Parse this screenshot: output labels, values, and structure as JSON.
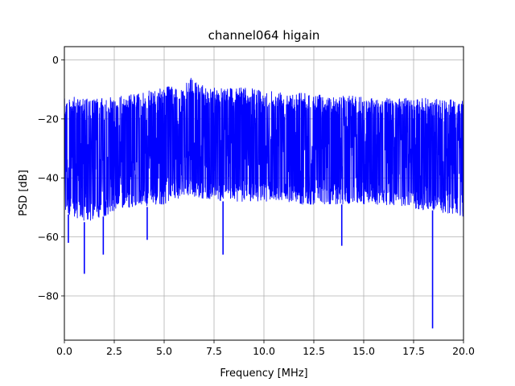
{
  "chart_data": {
    "type": "line",
    "title": "channel064 higain",
    "xlabel": "Frequency [MHz]",
    "ylabel": "PSD [dB]",
    "xlim": [
      0,
      20
    ],
    "ylim": [
      -95,
      4.5
    ],
    "grid": true,
    "x_ticks": [
      0.0,
      2.5,
      5.0,
      7.5,
      10.0,
      12.5,
      15.0,
      17.5,
      20.0
    ],
    "x_tick_labels": [
      "0.0",
      "2.5",
      "5.0",
      "7.5",
      "10.0",
      "12.5",
      "15.0",
      "17.5",
      "20.0"
    ],
    "y_ticks": [
      0,
      -20,
      -40,
      -60,
      -80
    ],
    "y_tick_labels": [
      "0",
      "−20",
      "−40",
      "−60",
      "−80"
    ],
    "series": [
      {
        "color": "#0000ff",
        "envelope_x": [
          0.0,
          0.5,
          1.0,
          2.0,
          3.0,
          4.0,
          5.0,
          6.0,
          6.3,
          7.0,
          8.0,
          9.0,
          10.0,
          11.0,
          12.0,
          13.0,
          14.0,
          15.0,
          16.0,
          17.0,
          18.0,
          18.5,
          19.0,
          20.0
        ],
        "upper_envelope": [
          -13,
          -12.5,
          -13,
          -13,
          -12,
          -11,
          -9,
          -9,
          -6,
          -9,
          -9,
          -9.5,
          -10,
          -10.5,
          -11,
          -12,
          -12,
          -12.5,
          -13,
          -13,
          -13,
          -13,
          -13.5,
          -13.5
        ],
        "lower_envelope": [
          -52,
          -53,
          -55,
          -53,
          -50,
          -50,
          -49,
          -46,
          -46,
          -47,
          -48,
          -48,
          -48,
          -48,
          -49,
          -49,
          -49,
          -49,
          -49,
          -50,
          -51,
          -51,
          -52,
          -53
        ],
        "notable_points": [
          {
            "x": 0.2,
            "y": -62
          },
          {
            "x": 1.0,
            "y": -72.5
          },
          {
            "x": 1.95,
            "y": -66
          },
          {
            "x": 4.15,
            "y": -61
          },
          {
            "x": 6.3,
            "y": -6
          },
          {
            "x": 7.95,
            "y": -66
          },
          {
            "x": 13.9,
            "y": -63
          },
          {
            "x": 18.45,
            "y": -91
          }
        ]
      }
    ]
  }
}
